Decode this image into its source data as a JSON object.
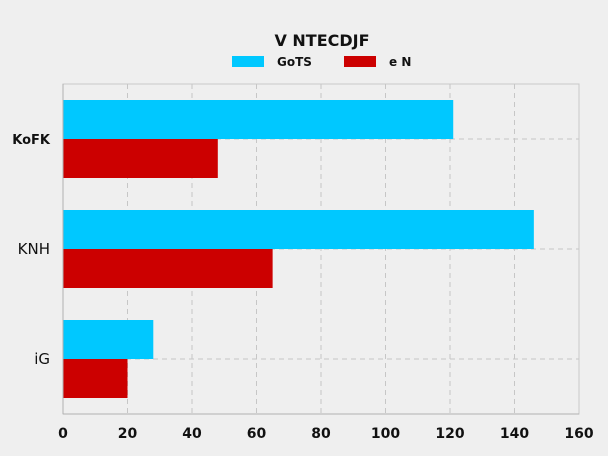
{
  "chart_data": {
    "type": "bar",
    "orientation": "horizontal",
    "title": "V NTECDJF",
    "categories": [
      "KoFK",
      "KNH",
      "iG"
    ],
    "series": [
      {
        "name": "GoTS",
        "color": "#00c8ff",
        "values": [
          121,
          146,
          28
        ]
      },
      {
        "name": "e N",
        "color": "#cc0000",
        "values": [
          48,
          65,
          20
        ]
      }
    ],
    "xlim": [
      0,
      160
    ],
    "xticks": [
      "0",
      "20",
      "40",
      "60",
      "80",
      "100",
      "120",
      "140",
      "160"
    ],
    "grid": true,
    "legend_position": "top-center"
  }
}
